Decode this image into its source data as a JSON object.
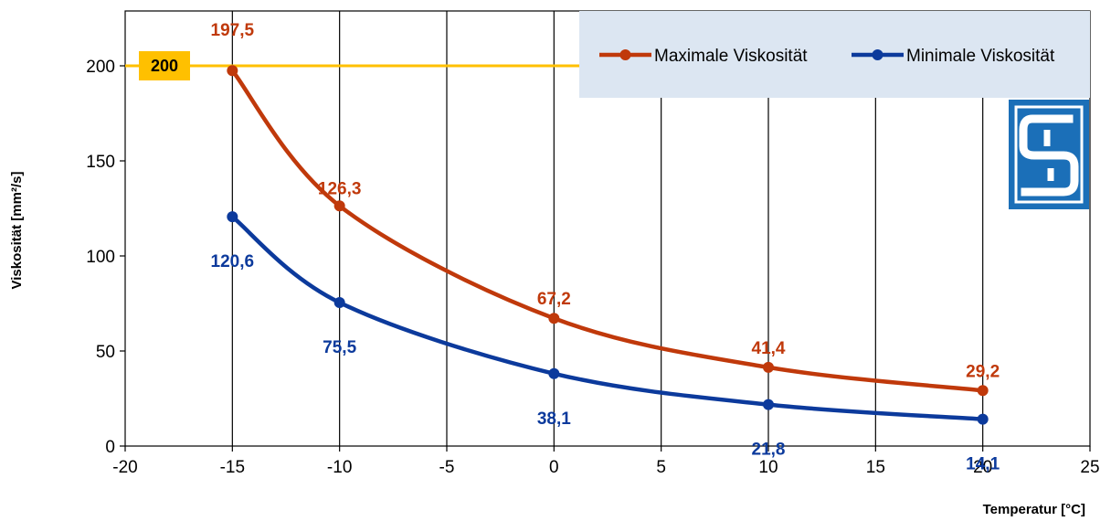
{
  "chart_data": {
    "type": "line",
    "xlabel": "Temperatur [°C]",
    "ylabel": "Viskosität [mm²/s]",
    "xlim": [
      -20,
      25
    ],
    "ylim": [
      0,
      200
    ],
    "x_ticks": [
      "-20",
      "-15",
      "-10",
      "-5",
      "0",
      "5",
      "10",
      "15",
      "20",
      "25"
    ],
    "y_ticks": [
      "0",
      "50",
      "100",
      "150",
      "200"
    ],
    "grid": "vertical",
    "legend_position": "top-right",
    "reference_line": {
      "value": 200,
      "label": "200",
      "color": "#ffc000"
    },
    "series": [
      {
        "name": "Maximale Viskosität",
        "color": "#c0390b",
        "x": [
          -15,
          -10,
          0,
          10,
          20
        ],
        "values": [
          197.5,
          126.3,
          67.2,
          41.4,
          29.2
        ],
        "labels": [
          "197,5",
          "126,3",
          "67,2",
          "41,4",
          "29,2"
        ]
      },
      {
        "name": "Minimale Viskosität",
        "color": "#0c3a9c",
        "x": [
          -15,
          -10,
          0,
          10,
          20
        ],
        "values": [
          120.6,
          75.5,
          38.1,
          21.8,
          14.1
        ],
        "labels": [
          "120,6",
          "75,5",
          "38,1",
          "21,8",
          "14,1"
        ]
      }
    ]
  },
  "logo": {
    "name": "company-logo-icon",
    "color": "#1b6fb8"
  }
}
